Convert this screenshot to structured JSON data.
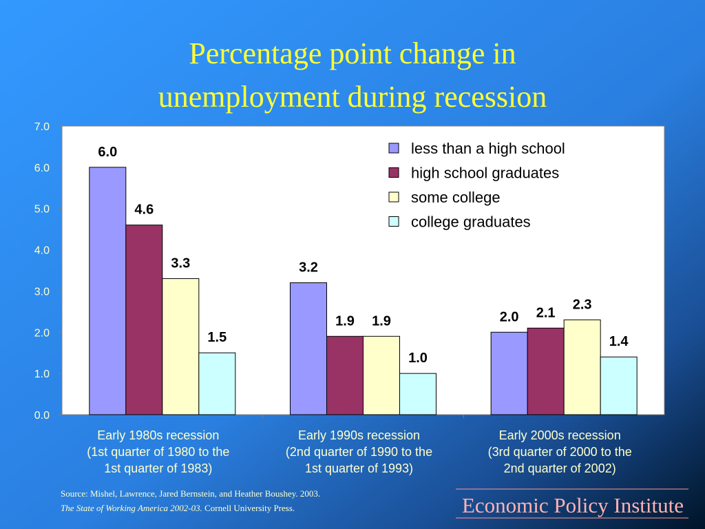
{
  "chart_data": {
    "type": "bar",
    "title": [
      "Percentage point change in",
      "unemployment during recession"
    ],
    "categories": [
      [
        "Early 1980s recession",
        "(1st quarter of 1980 to the",
        "1st quarter of 1983)"
      ],
      [
        "Early 1990s recession",
        "(2nd quarter of 1990 to the",
        "1st quarter of 1993)"
      ],
      [
        "Early 2000s recession",
        "(3rd quarter of 2000 to the",
        "2nd quarter of 2002)"
      ]
    ],
    "series": [
      {
        "name": "less than a high school",
        "color": "#9999ff",
        "values": [
          6.0,
          3.2,
          2.0
        ],
        "value_labels": [
          "6.0",
          "3.2",
          "2.0"
        ]
      },
      {
        "name": "high school graduates",
        "color": "#993366",
        "values": [
          4.6,
          1.9,
          2.1
        ],
        "value_labels": [
          "4.6",
          "1.9",
          "2.1"
        ]
      },
      {
        "name": "some college",
        "color": "#ffffcc",
        "values": [
          3.3,
          1.9,
          2.3
        ],
        "value_labels": [
          "3.3",
          "1.9",
          "2.3"
        ]
      },
      {
        "name": "college graduates",
        "color": "#ccffff",
        "values": [
          1.5,
          1.0,
          1.4
        ],
        "value_labels": [
          "1.5",
          "1.0",
          "1.4"
        ]
      }
    ],
    "ylim": [
      0,
      7
    ],
    "yticks": [
      {
        "value": 0,
        "label": "0.0"
      },
      {
        "value": 1,
        "label": "1.0"
      },
      {
        "value": 2,
        "label": "2.0"
      },
      {
        "value": 3,
        "label": "3.0"
      },
      {
        "value": 4,
        "label": "4.0"
      },
      {
        "value": 5,
        "label": "5.0"
      },
      {
        "value": 6,
        "label": "6.0"
      },
      {
        "value": 7,
        "label": "7.0"
      }
    ],
    "grid": false,
    "legend": "upper right",
    "source": {
      "line1": "Source:  Mishel, Lawrence, Jared Bernstein, and Heather Boushey. 2003.",
      "italic": "The State of Working America 2002-03.",
      "rest": " Cornell University Press."
    },
    "brand": "Economic Policy Institute"
  }
}
